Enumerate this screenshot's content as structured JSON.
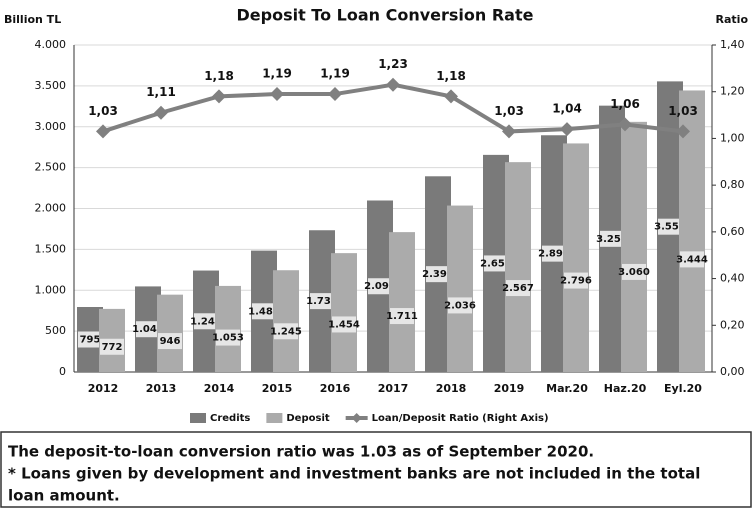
{
  "chart_data": {
    "type": "bar",
    "title": "Deposit To Loan Conversion Rate",
    "y_label": "Billion TL",
    "y2_label": "Ratio",
    "categories": [
      "2012",
      "2013",
      "2014",
      "2015",
      "2016",
      "2017",
      "2018",
      "2019",
      "Mar.20",
      "Haz.20",
      "Eyl.20"
    ],
    "series": [
      {
        "name": "Credits",
        "color": "#7a7a7a",
        "values": [
          795,
          1047,
          1241,
          1485,
          1734,
          2098,
          2394,
          2656,
          2896,
          3258,
          3555
        ],
        "value_labels": [
          "795",
          "1.047",
          "1.241",
          "1.485",
          "1.734",
          "2.098",
          "2.394",
          "2.656",
          "2.896",
          "3.258",
          "3.555"
        ]
      },
      {
        "name": "Deposit",
        "color": "#ababab",
        "values": [
          772,
          946,
          1053,
          1245,
          1454,
          1711,
          2036,
          2567,
          2796,
          3060,
          3444
        ],
        "value_labels": [
          "772",
          "946",
          "1.053",
          "1.245",
          "1.454",
          "1.711",
          "2.036",
          "2.567",
          "2.796",
          "3.060",
          "3.444"
        ]
      },
      {
        "name": "Loan/Deposit Ratio (Right Axis)",
        "type": "line",
        "axis": "y2",
        "color": "#808080",
        "values": [
          1.03,
          1.11,
          1.18,
          1.19,
          1.19,
          1.23,
          1.18,
          1.03,
          1.04,
          1.06,
          1.03
        ],
        "value_labels": [
          "1,03",
          "1,11",
          "1,18",
          "1,19",
          "1,19",
          "1,23",
          "1,18",
          "1,03",
          "1,04",
          "1,06",
          "1,03"
        ]
      }
    ],
    "ylim": [
      0,
      4000
    ],
    "yticks": [
      0,
      500,
      {
        "value": 1000,
        "label": "1.000"
      },
      {
        "value": 1500,
        "label": "1.500"
      },
      {
        "value": 2000,
        "label": "2.000"
      },
      {
        "value": 2500,
        "label": "2.500"
      },
      {
        "value": 3000,
        "label": "3.000"
      },
      {
        "value": 3500,
        "label": "3.500"
      },
      {
        "value": 4000,
        "label": "4.000"
      }
    ],
    "y2lim": [
      0,
      1.4
    ],
    "y2ticks": [
      {
        "value": 0,
        "label": "0,00"
      },
      {
        "value": 0.2,
        "label": "0,20"
      },
      {
        "value": 0.4,
        "label": "0,40"
      },
      {
        "value": 0.6,
        "label": "0,60"
      },
      {
        "value": 0.8,
        "label": "0,80"
      },
      {
        "value": 1.0,
        "label": "1,00"
      },
      {
        "value": 1.2,
        "label": "1,20"
      },
      {
        "value": 1.4,
        "label": "1,40"
      }
    ],
    "grid": true,
    "legend": "bottom",
    "notes": [
      "The deposit-to-loan conversion ratio was 1.03 as of September 2020.",
      "* Loans given by development and investment banks are not included in the total",
      "loan amount."
    ]
  }
}
